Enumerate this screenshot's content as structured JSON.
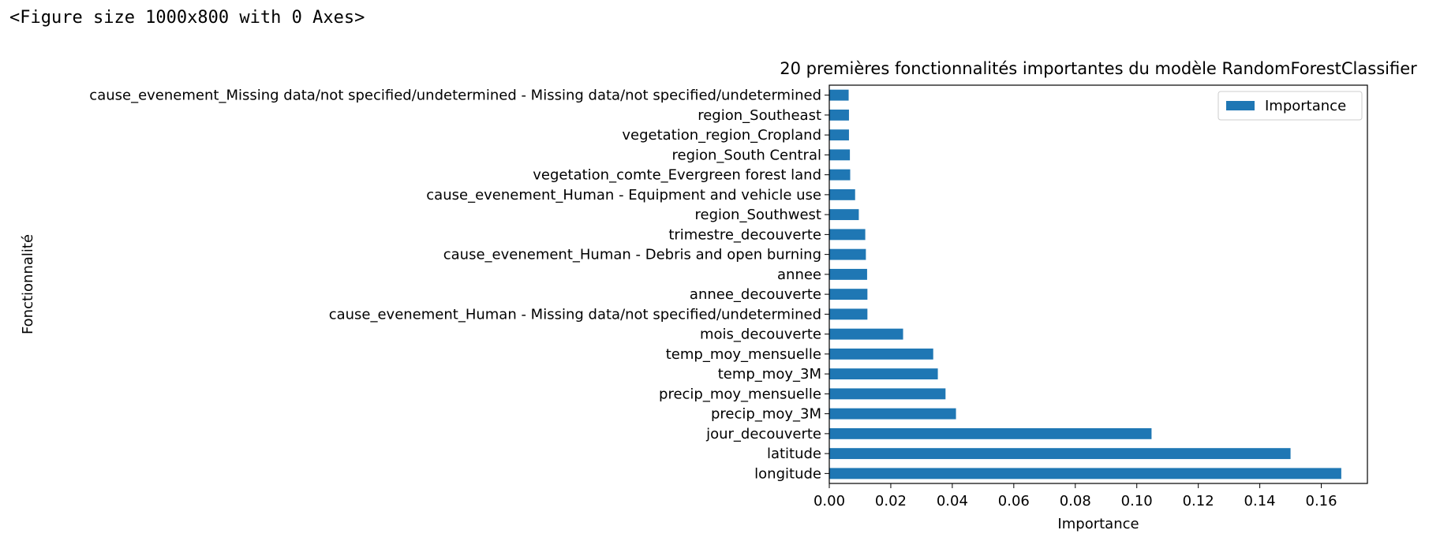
{
  "output_text": "<Figure size 1000x800 with 0 Axes>",
  "chart_data": {
    "type": "bar",
    "orientation": "horizontal",
    "title": "20 premières fonctionnalités importantes du modèle RandomForestClassifier",
    "xlabel": "Importance",
    "ylabel": "Fonctionnalité",
    "xlim": [
      0,
      0.175
    ],
    "xticks": [
      "0.00",
      "0.02",
      "0.04",
      "0.06",
      "0.08",
      "0.10",
      "0.12",
      "0.14",
      "0.16"
    ],
    "legend": {
      "position": "top-right",
      "entries": [
        "Importance"
      ]
    },
    "series": [
      {
        "name": "Importance",
        "color": "#1f77b4",
        "categories": [
          "longitude",
          "latitude",
          "jour_decouverte",
          "precip_moy_3M",
          "precip_moy_mensuelle",
          "temp_moy_3M",
          "temp_moy_mensuelle",
          "mois_decouverte",
          "cause_evenement_Human - Missing data/not specified/undetermined",
          "annee_decouverte",
          "annee",
          "cause_evenement_Human - Debris and open burning",
          "trimestre_decouverte",
          "region_Southwest",
          "cause_evenement_Human - Equipment and vehicle use",
          "vegetation_comte_Evergreen forest land",
          "region_South Central",
          "vegetation_region_Cropland",
          "region_Southeast",
          "cause_evenement_Missing data/not specified/undetermined - Missing data/not specified/undetermined"
        ],
        "values": [
          0.1665,
          0.15,
          0.1048,
          0.0412,
          0.0378,
          0.0353,
          0.0338,
          0.024,
          0.0124,
          0.0124,
          0.0123,
          0.0119,
          0.0117,
          0.0096,
          0.0084,
          0.0068,
          0.0067,
          0.0064,
          0.0064,
          0.0063
        ]
      }
    ]
  }
}
